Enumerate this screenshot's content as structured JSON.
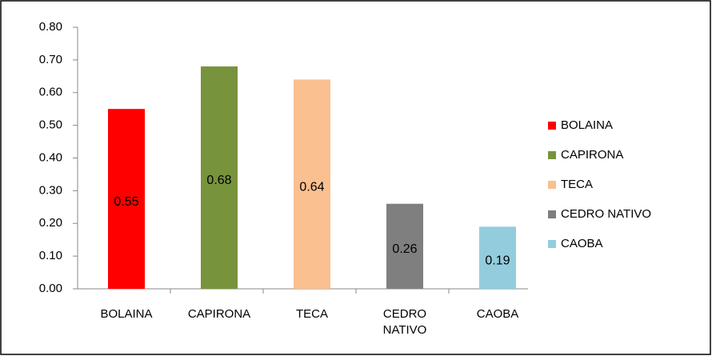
{
  "chart_data": {
    "type": "bar",
    "categories": [
      "BOLAINA",
      "CAPIRONA",
      "TECA",
      "CEDRO NATIVO",
      "CAOBA"
    ],
    "values": [
      0.55,
      0.68,
      0.64,
      0.26,
      0.19
    ],
    "colors": [
      "#ff0000",
      "#77933c",
      "#fac090",
      "#7f7f7f",
      "#93cddd"
    ],
    "ylim": [
      0,
      0.8
    ],
    "yticks": [
      {
        "value": 0,
        "label": "0.00"
      },
      {
        "value": 0.1,
        "label": "0.10"
      },
      {
        "value": 0.2,
        "label": "0.20"
      },
      {
        "value": 0.3,
        "label": "0.30"
      },
      {
        "value": 0.4,
        "label": "0.40"
      },
      {
        "value": 0.5,
        "label": "0.50"
      },
      {
        "value": 0.6,
        "label": "0.60"
      },
      {
        "value": 0.7,
        "label": "0.70"
      },
      {
        "value": 0.8,
        "label": "0.80"
      }
    ],
    "grid": false,
    "legend": "right"
  }
}
